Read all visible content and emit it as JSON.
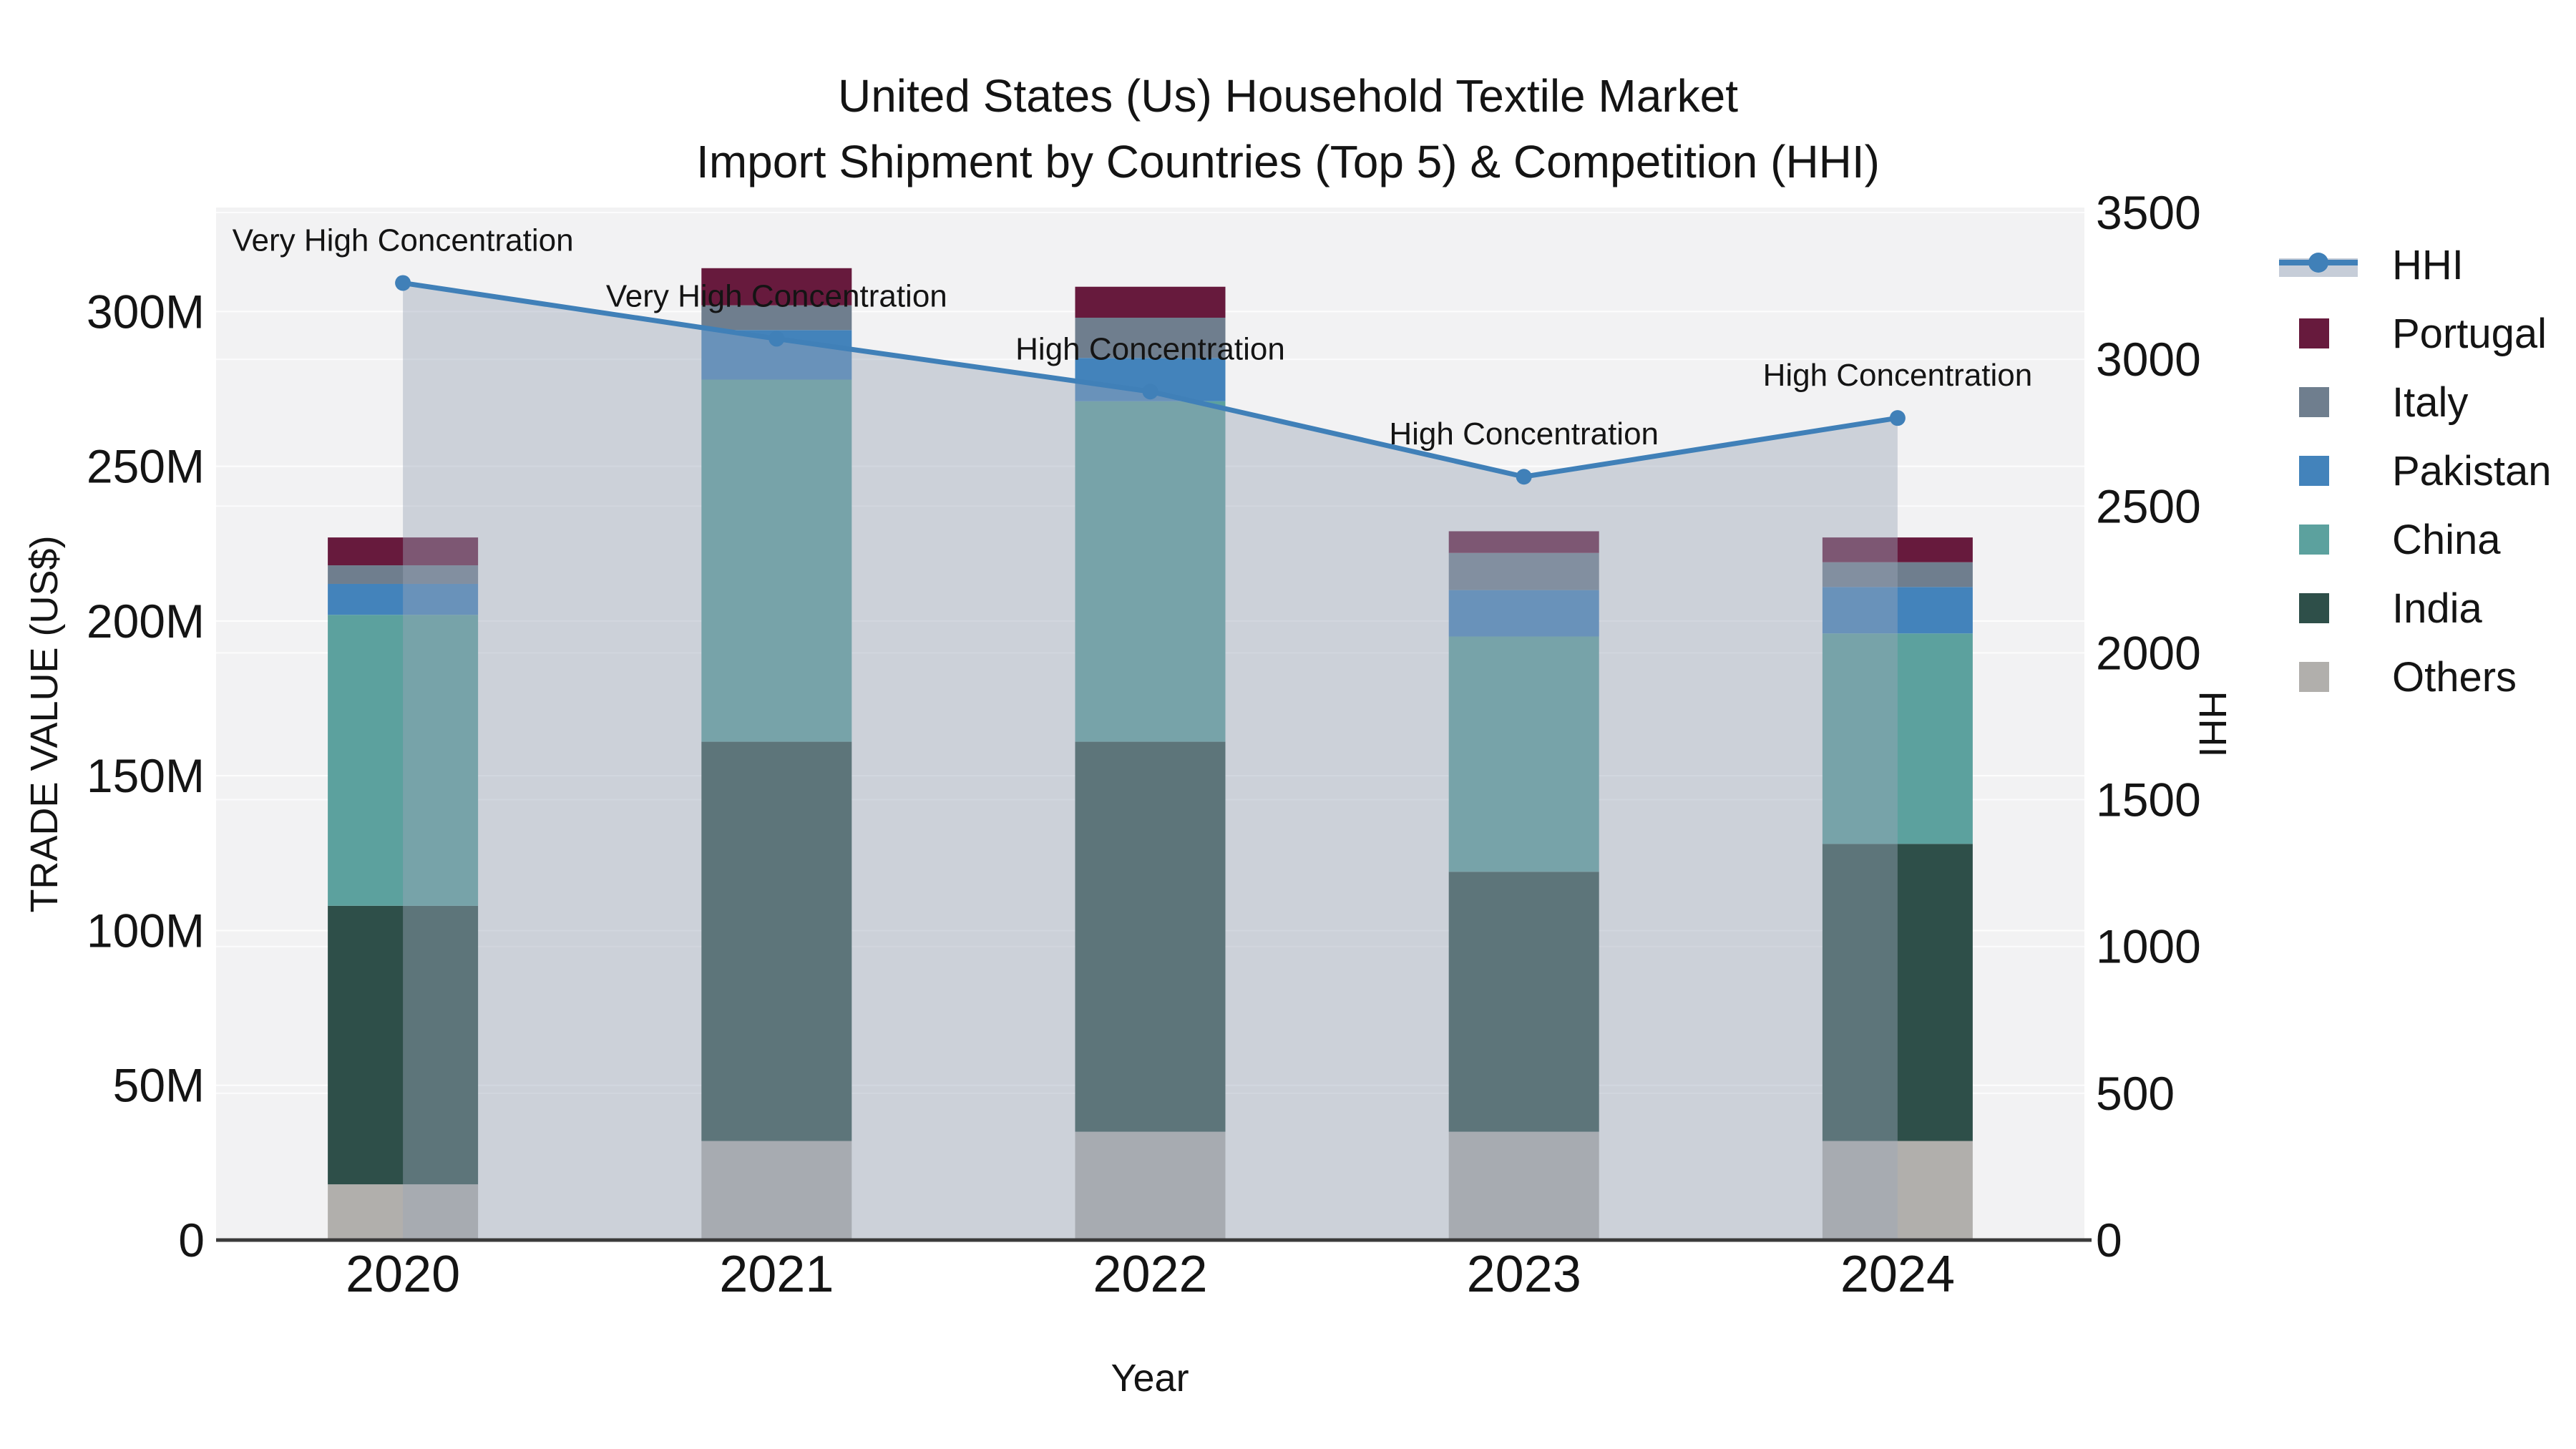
{
  "title": {
    "line1": "United States (Us) Household Textile Market",
    "line2": "Import Shipment by Countries (Top 5) & Competition (HHI)"
  },
  "axes": {
    "x_title": "Year",
    "y_left_title": "TRADE VALUE (US$)",
    "y_right_title": "HHI",
    "y_left_ticks": [
      {
        "label": "0",
        "value": 0
      },
      {
        "label": "50M",
        "value": 50
      },
      {
        "label": "100M",
        "value": 100
      },
      {
        "label": "150M",
        "value": 150
      },
      {
        "label": "200M",
        "value": 200
      },
      {
        "label": "250M",
        "value": 250
      },
      {
        "label": "300M",
        "value": 300
      }
    ],
    "y_right_ticks": [
      {
        "label": "0",
        "value": 0
      },
      {
        "label": "500",
        "value": 500
      },
      {
        "label": "1000",
        "value": 1000
      },
      {
        "label": "1500",
        "value": 1500
      },
      {
        "label": "2000",
        "value": 2000
      },
      {
        "label": "2500",
        "value": 2500
      },
      {
        "label": "3000",
        "value": 3000
      },
      {
        "label": "3500",
        "value": 3500
      }
    ]
  },
  "legend": {
    "items": [
      {
        "label": "HHI",
        "type": "line",
        "color": "#4080b8"
      },
      {
        "label": "Portugal",
        "type": "square",
        "color": "#671a3d"
      },
      {
        "label": "Italy",
        "type": "square",
        "color": "#6f7e8e"
      },
      {
        "label": "Pakistan",
        "type": "square",
        "color": "#4383bb"
      },
      {
        "label": "China",
        "type": "square",
        "color": "#5ca19e"
      },
      {
        "label": "India",
        "type": "square",
        "color": "#2e4f49"
      },
      {
        "label": "Others",
        "type": "square",
        "color": "#b1afac"
      }
    ]
  },
  "chart_data": {
    "type": "bar+line",
    "title": "United States (Us) Household Textile Market Import Shipment by Countries (Top 5) & Competition (HHI)",
    "xlabel": "Year",
    "ylabel_left": "TRADE VALUE (US$)",
    "ylabel_right": "HHI",
    "categories": [
      "2020",
      "2021",
      "2022",
      "2023",
      "2024"
    ],
    "values_unit": "millions USD",
    "stack_order": "bottom_to_top",
    "series": [
      {
        "name": "Others",
        "color": "#b1afac",
        "values": [
          18,
          32,
          35,
          35,
          32
        ]
      },
      {
        "name": "India",
        "color": "#2e4f49",
        "values": [
          90,
          129,
          126,
          84,
          96
        ]
      },
      {
        "name": "China",
        "color": "#5ca19e",
        "values": [
          94,
          117,
          110,
          76,
          68
        ]
      },
      {
        "name": "Pakistan",
        "color": "#4383bb",
        "values": [
          10,
          16,
          14,
          15,
          15
        ]
      },
      {
        "name": "Italy",
        "color": "#6f7e8e",
        "values": [
          6,
          8,
          13,
          12,
          8
        ]
      },
      {
        "name": "Portugal",
        "color": "#671a3d",
        "values": [
          9,
          12,
          10,
          7,
          8
        ]
      }
    ],
    "bar_totals": [
      227,
      314,
      308,
      229,
      227
    ],
    "hhi": {
      "name": "HHI",
      "values": [
        3260,
        3070,
        2890,
        2600,
        2800
      ],
      "line_color": "#4080b8",
      "marker_color": "#4080b8",
      "area_color": "#9aa7b8",
      "area_opacity": 0.44,
      "band_color": "#c6cdd8"
    },
    "annotations": [
      "Very High Concentration",
      "Very High Concentration",
      "High Concentration",
      "High Concentration",
      "High Concentration"
    ],
    "ylim_left": [
      0,
      333.6
    ],
    "ylim_right": [
      0,
      3517
    ],
    "grid": true,
    "legend_position": "right",
    "plot_bg": "#f2f2f3",
    "grid_color": "#ffffff",
    "axis_line_color": "#3a3a3a"
  }
}
